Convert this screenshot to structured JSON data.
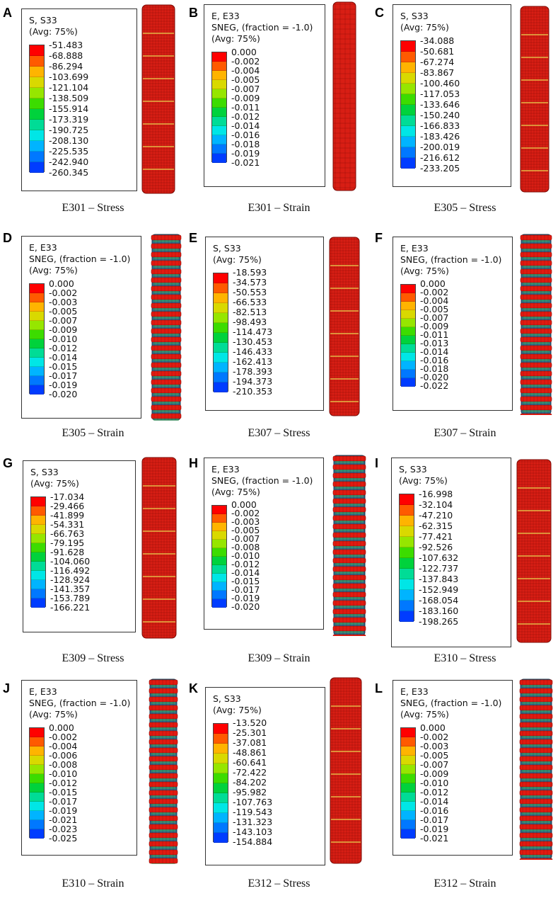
{
  "colors": {
    "contour": [
      "#ff0000",
      "#ff5a00",
      "#ffb400",
      "#d9d900",
      "#96e600",
      "#3cdc00",
      "#00d23c",
      "#00dc96",
      "#00e6e6",
      "#00b4ff",
      "#0078ff",
      "#003cff",
      "#0000ff"
    ],
    "rod_red": "#d81e14",
    "rod_mesh": "#7a0a05",
    "ring_red": "#e21a10",
    "ring_gap": "#2e6a8a"
  },
  "panels": [
    {
      "letter": "A",
      "legend_lines": [
        "S, S33",
        "(Avg: 75%)"
      ],
      "values": [
        "-51.483",
        "-68.888",
        "-86.294",
        "-103.699",
        "-121.104",
        "-138.509",
        "-155.914",
        "-173.319",
        "-190.725",
        "-208.130",
        "-225.535",
        "-242.940",
        "-260.345"
      ],
      "caption": "E301 – Stress",
      "column": "stress"
    },
    {
      "letter": "B",
      "legend_lines": [
        "E, E33",
        "SNEG, (fraction = -1.0)",
        "(Avg: 75%)"
      ],
      "values": [
        "0.000",
        "-0.002",
        "-0.004",
        "-0.005",
        "-0.007",
        "-0.009",
        "-0.011",
        "-0.012",
        "-0.014",
        "-0.016",
        "-0.018",
        "-0.019",
        "-0.021"
      ],
      "caption": "E301 – Strain",
      "column": "grid"
    },
    {
      "letter": "C",
      "legend_lines": [
        "S, S33",
        "(Avg: 75%)"
      ],
      "values": [
        "-34.088",
        "-50.681",
        "-67.274",
        "-83.867",
        "-100.460",
        "-117.053",
        "-133.646",
        "-150.240",
        "-166.833",
        "-183.426",
        "-200.019",
        "-216.612",
        "-233.205"
      ],
      "caption": "E305 – Stress",
      "column": "stress"
    },
    {
      "letter": "D",
      "legend_lines": [
        "E, E33",
        "SNEG, (fraction = -1.0)",
        "(Avg: 75%)"
      ],
      "values": [
        "0.000",
        "-0.002",
        "-0.003",
        "-0.005",
        "-0.007",
        "-0.009",
        "-0.010",
        "-0.012",
        "-0.014",
        "-0.015",
        "-0.017",
        "-0.019",
        "-0.020"
      ],
      "caption": "E305 – Strain",
      "column": "rings"
    },
    {
      "letter": "E",
      "legend_lines": [
        "S, S33",
        "(Avg: 75%)"
      ],
      "values": [
        "-18.593",
        "-34.573",
        "-50.553",
        "-66.533",
        "-82.513",
        "-98.493",
        "-114.473",
        "-130.453",
        "-146.433",
        "-162.413",
        "-178.393",
        "-194.373",
        "-210.353"
      ],
      "caption": "E307 – Stress",
      "column": "stress"
    },
    {
      "letter": "F",
      "legend_lines": [
        "E, E33",
        "SNEG, (fraction = -1.0)",
        "(Avg: 75%)"
      ],
      "values": [
        "0.000",
        "-0.002",
        "-0.004",
        "-0.005",
        "-0.007",
        "-0.009",
        "-0.011",
        "-0.013",
        "-0.014",
        "-0.016",
        "-0.018",
        "-0.020",
        "-0.022"
      ],
      "caption": "E307 – Strain",
      "column": "rings"
    },
    {
      "letter": "G",
      "legend_lines": [
        "S, S33",
        "(Avg: 75%)"
      ],
      "values": [
        "-17.034",
        "-29.466",
        "-41.899",
        "-54.331",
        "-66.763",
        "-79.195",
        "-91.628",
        "-104.060",
        "-116.492",
        "-128.924",
        "-141.357",
        "-153.789",
        "-166.221"
      ],
      "caption": "E309 – Stress",
      "column": "stress"
    },
    {
      "letter": "H",
      "legend_lines": [
        "E, E33",
        "SNEG, (fraction = -1.0)",
        "(Avg: 75%)"
      ],
      "values": [
        "0.000",
        "-0.002",
        "-0.003",
        "-0.005",
        "-0.007",
        "-0.008",
        "-0.010",
        "-0.012",
        "-0.014",
        "-0.015",
        "-0.017",
        "-0.019",
        "-0.020"
      ],
      "caption": "E309 – Strain",
      "column": "rings"
    },
    {
      "letter": "I",
      "legend_lines": [
        "S, S33",
        "(Avg: 75%)"
      ],
      "values": [
        "-16.998",
        "-32.104",
        "-47.210",
        "-62.315",
        "-77.421",
        "-92.526",
        "-107.632",
        "-122.737",
        "-137.843",
        "-152.949",
        "-168.054",
        "-183.160",
        "-198.265"
      ],
      "caption": "E310 – Stress",
      "column": "stress"
    },
    {
      "letter": "J",
      "legend_lines": [
        "E, E33",
        "SNEG, (fraction = -1.0)",
        "(Avg: 75%)"
      ],
      "values": [
        "0.000",
        "-0.002",
        "-0.004",
        "-0.006",
        "-0.008",
        "-0.010",
        "-0.012",
        "-0.015",
        "-0.017",
        "-0.019",
        "-0.021",
        "-0.023",
        "-0.025"
      ],
      "caption": "E310 – Strain",
      "column": "rings"
    },
    {
      "letter": "K",
      "legend_lines": [
        "S, S33",
        "(Avg: 75%)"
      ],
      "values": [
        "-13.520",
        "-25.301",
        "-37.081",
        "-48.861",
        "-60.641",
        "-72.422",
        "-84.202",
        "-95.982",
        "-107.763",
        "-119.543",
        "-131.323",
        "-143.103",
        "-154.884"
      ],
      "caption": "E312 – Stress",
      "column": "stress"
    },
    {
      "letter": "L",
      "legend_lines": [
        "E, E33",
        "SNEG, (fraction = -1.0)",
        "(Avg: 75%)"
      ],
      "values": [
        "0.000",
        "-0.002",
        "-0.003",
        "-0.005",
        "-0.007",
        "-0.009",
        "-0.010",
        "-0.012",
        "-0.014",
        "-0.016",
        "-0.017",
        "-0.019",
        "-0.021"
      ],
      "caption": "E312 – Strain",
      "column": "rings"
    }
  ]
}
